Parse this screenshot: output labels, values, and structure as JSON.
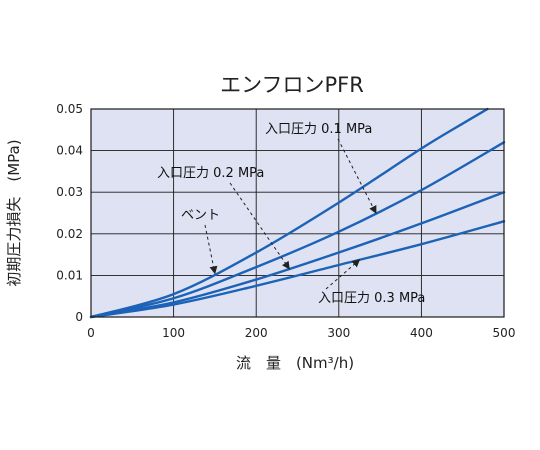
{
  "colors": {
    "plot_bg": "#dfe2f2",
    "grid": "#1a1a1a",
    "line": "#1c63b7",
    "arrow": "#222222"
  },
  "chart_data": {
    "type": "line",
    "title": "エンフロンPFR",
    "xlabel": "流　量　(Nm³/h)",
    "ylabel": "初期圧力損失　(MPa)",
    "xlim": [
      0,
      500
    ],
    "ylim": [
      0,
      0.05
    ],
    "xticks": [
      "0",
      "100",
      "200",
      "300",
      "400",
      "500"
    ],
    "yticks": [
      "0",
      "0.01",
      "0.02",
      "0.03",
      "0.04",
      "0.05"
    ],
    "grid": true,
    "series": [
      {
        "name": "ベント",
        "x": [
          0,
          100,
          200,
          300,
          400,
          450,
          480
        ],
        "y": [
          0,
          0.0055,
          0.0155,
          0.0275,
          0.0405,
          0.0465,
          0.05
        ]
      },
      {
        "name": "入口圧力 0.1 MPa",
        "x": [
          0,
          100,
          200,
          300,
          400,
          500
        ],
        "y": [
          0,
          0.0045,
          0.012,
          0.0205,
          0.0305,
          0.042
        ]
      },
      {
        "name": "入口圧力 0.2 MPa",
        "x": [
          0,
          100,
          200,
          300,
          400,
          500
        ],
        "y": [
          0,
          0.0035,
          0.009,
          0.0155,
          0.0225,
          0.03
        ]
      },
      {
        "name": "入口圧力 0.3 MPa",
        "x": [
          0,
          100,
          200,
          300,
          400,
          500
        ],
        "y": [
          0,
          0.003,
          0.0075,
          0.0125,
          0.0175,
          0.023
        ]
      }
    ],
    "annotations": [
      {
        "text": "入口圧力 0.1 MPa",
        "series": 1,
        "at_x": 345
      },
      {
        "text": "入口圧力 0.2 MPa",
        "series": 2,
        "at_x": 240
      },
      {
        "text": "ベント",
        "series": 0,
        "at_x": 150
      },
      {
        "text": "入口圧力 0.3 MPa",
        "series": 3,
        "at_x": 325
      }
    ]
  }
}
